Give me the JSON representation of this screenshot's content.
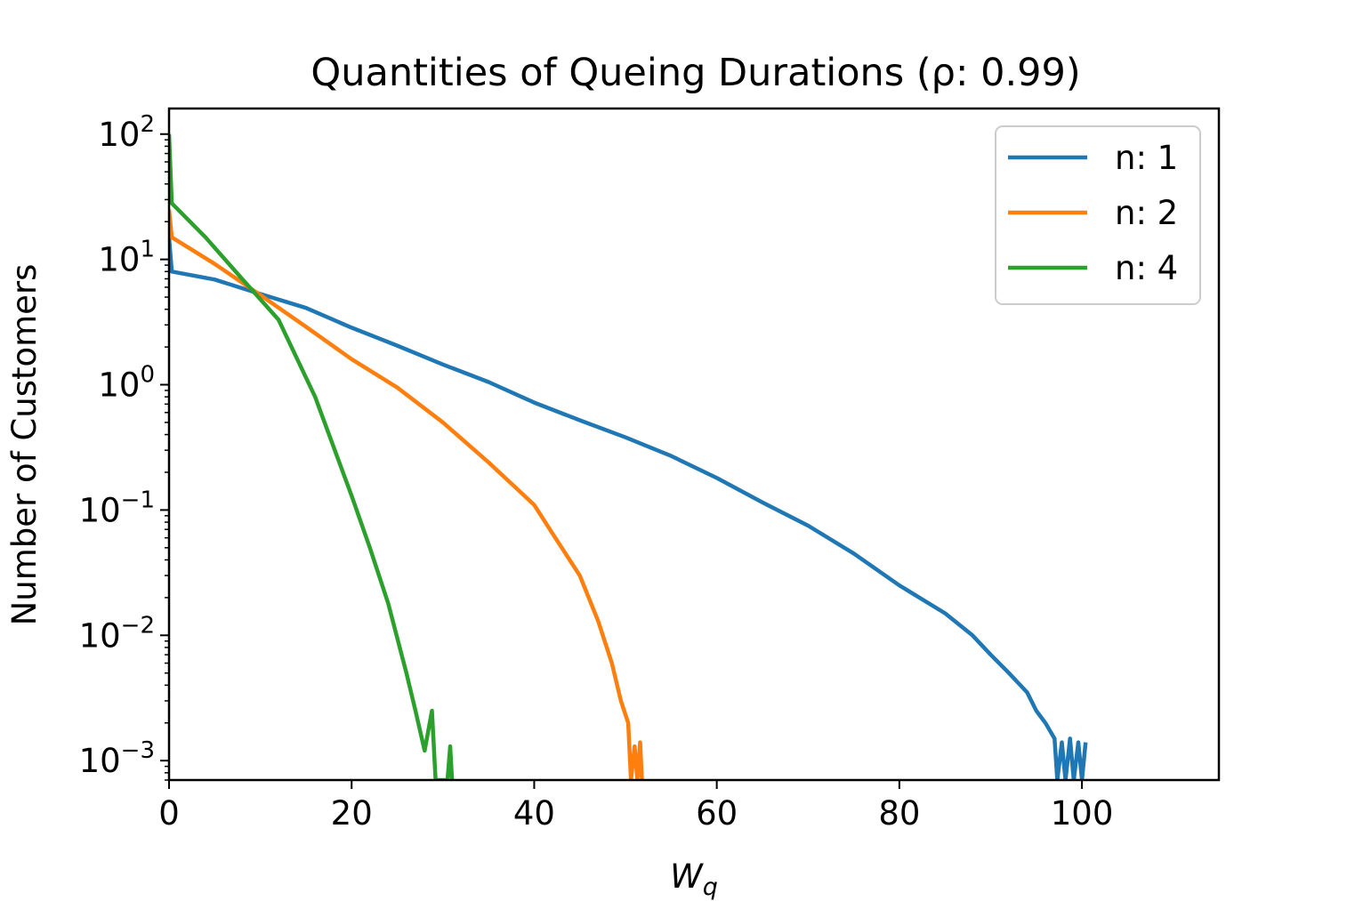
{
  "chart_data": {
    "type": "line",
    "title": "Quantities of Queing Durations (ρ: 0.99)",
    "xlabel": "W",
    "xlabel_sub": "q",
    "ylabel": "Number of Customers",
    "yscale": "log",
    "xlim": [
      0,
      115
    ],
    "ylim": [
      0.0007,
      160
    ],
    "x_ticks": [
      0,
      20,
      40,
      60,
      80,
      100
    ],
    "x_tick_labels": [
      "0",
      "20",
      "40",
      "60",
      "80",
      "100"
    ],
    "y_ticks": [
      0.001,
      0.01,
      0.1,
      1,
      10,
      100
    ],
    "y_tick_base": [
      "10",
      "10",
      "10",
      "10",
      "10",
      "10"
    ],
    "y_tick_exponents": [
      "−3",
      "−2",
      "−1",
      "0",
      "1",
      "2"
    ],
    "legend_position": "upper right",
    "grid": false,
    "series": [
      {
        "name": "n: 1",
        "color": "#1f77b4",
        "points": [
          [
            0,
            15
          ],
          [
            0.3,
            8
          ],
          [
            5,
            6.9
          ],
          [
            10,
            5.3
          ],
          [
            15,
            4.1
          ],
          [
            20,
            2.85
          ],
          [
            25,
            2.05
          ],
          [
            30,
            1.45
          ],
          [
            35,
            1.05
          ],
          [
            40,
            0.72
          ],
          [
            45,
            0.52
          ],
          [
            50,
            0.38
          ],
          [
            55,
            0.27
          ],
          [
            60,
            0.18
          ],
          [
            65,
            0.115
          ],
          [
            70,
            0.075
          ],
          [
            75,
            0.045
          ],
          [
            80,
            0.025
          ],
          [
            85,
            0.015
          ],
          [
            88,
            0.01
          ],
          [
            90,
            0.007
          ],
          [
            92,
            0.005
          ],
          [
            94,
            0.0035
          ],
          [
            95,
            0.0025
          ],
          [
            96,
            0.002
          ],
          [
            97,
            0.0015
          ],
          [
            97.3,
            0.0007
          ],
          [
            97.8,
            0.0014
          ],
          [
            98.2,
            0.0007
          ],
          [
            98.7,
            0.0015
          ],
          [
            99.1,
            0.0007
          ],
          [
            99.6,
            0.0014
          ],
          [
            100,
            0.0007
          ],
          [
            100.4,
            0.0014
          ]
        ]
      },
      {
        "name": "n: 2",
        "color": "#ff7f0e",
        "points": [
          [
            0,
            25
          ],
          [
            0.3,
            15
          ],
          [
            5,
            9.2
          ],
          [
            10,
            5.2
          ],
          [
            15,
            2.9
          ],
          [
            20,
            1.6
          ],
          [
            25,
            0.95
          ],
          [
            30,
            0.5
          ],
          [
            35,
            0.24
          ],
          [
            40,
            0.11
          ],
          [
            42,
            0.065
          ],
          [
            45,
            0.03
          ],
          [
            47,
            0.013
          ],
          [
            48.5,
            0.006
          ],
          [
            49.5,
            0.003
          ],
          [
            50.3,
            0.002
          ],
          [
            50.6,
            0.0007
          ],
          [
            51,
            0.0013
          ],
          [
            51.3,
            0.0007
          ],
          [
            51.6,
            0.0014
          ],
          [
            51.8,
            0.0007
          ]
        ]
      },
      {
        "name": "n: 4",
        "color": "#2ca02c",
        "points": [
          [
            0,
            100
          ],
          [
            0.3,
            28
          ],
          [
            4,
            15
          ],
          [
            8,
            7
          ],
          [
            12,
            3.3
          ],
          [
            16,
            0.8
          ],
          [
            20,
            0.13
          ],
          [
            22,
            0.05
          ],
          [
            24,
            0.018
          ],
          [
            26,
            0.005
          ],
          [
            27,
            0.0025
          ],
          [
            28,
            0.0012
          ],
          [
            28.8,
            0.0025
          ],
          [
            29.2,
            0.0007
          ],
          [
            30.5,
            0.0007
          ],
          [
            30.8,
            0.0013
          ],
          [
            31,
            0.0007
          ]
        ]
      }
    ]
  }
}
